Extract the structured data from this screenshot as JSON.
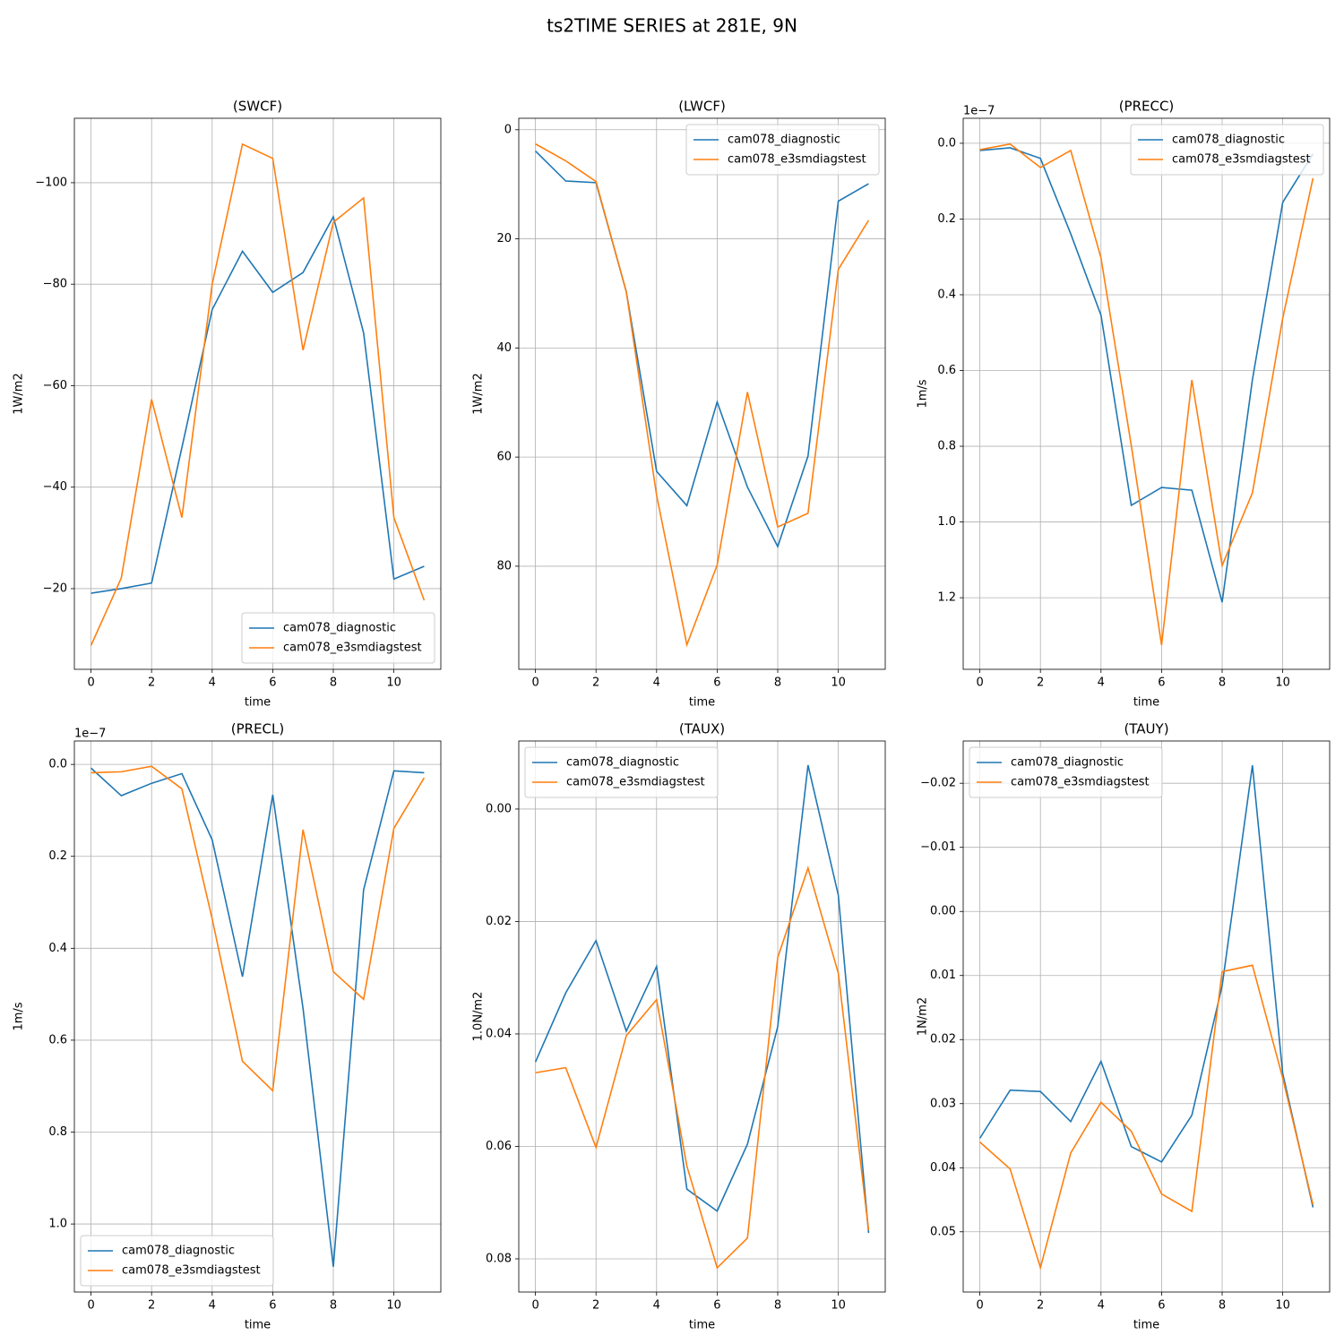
{
  "title": "ts2TIME SERIES at 281E, 9N",
  "chart_data": [
    {
      "type": "line",
      "title": "(SWCF)",
      "x_label": "time",
      "y_label": "1W/m2",
      "x": [
        0,
        1,
        2,
        3,
        4,
        5,
        6,
        7,
        8,
        9,
        10,
        11
      ],
      "xlim": [
        -0.55,
        11.55
      ],
      "xticks": [
        0,
        2,
        4,
        6,
        8,
        10
      ],
      "ylim": [
        -4.1,
        -112.7
      ],
      "yticks": [
        {
          "value": -100,
          "label": "−100"
        },
        {
          "value": -80,
          "label": "−80"
        },
        {
          "value": -60,
          "label": "−60"
        },
        {
          "value": -40,
          "label": "−40"
        },
        {
          "value": -20,
          "label": "−20"
        }
      ],
      "grid": true,
      "legend": "lower right",
      "series": [
        {
          "name": "cam078_diagnostic",
          "color": "#1f77b4",
          "values": [
            -19.1,
            -20,
            -21.1,
            -47.8,
            -75,
            -86.5,
            -78.4,
            -82.3,
            -93.3,
            -70.4,
            -21.9,
            -24.4
          ]
        },
        {
          "name": "cam078_e3smdiagstest",
          "color": "#ff7f0e",
          "values": [
            -8.8,
            -22.1,
            -57.3,
            -34,
            -80,
            -107.6,
            -104.8,
            -67,
            -92.2,
            -97,
            -34,
            -17.7
          ]
        }
      ]
    },
    {
      "type": "line",
      "title": "(LWCF)",
      "x_label": "time",
      "y_label": "1W/m2",
      "x": [
        0,
        1,
        2,
        3,
        4,
        5,
        6,
        7,
        8,
        9,
        10,
        11
      ],
      "xlim": [
        -0.55,
        11.55
      ],
      "xticks": [
        0,
        2,
        4,
        6,
        8,
        10
      ],
      "ylim": [
        98.9,
        -2.1
      ],
      "yticks": [
        0,
        20,
        40,
        60,
        80
      ],
      "grid": true,
      "legend": "upper right",
      "series": [
        {
          "name": "cam078_diagnostic",
          "color": "#1f77b4",
          "values": [
            3.9,
            9.4,
            9.7,
            29.7,
            62.6,
            68.9,
            49.9,
            65.5,
            76.4,
            59.8,
            13.1,
            9.9
          ]
        },
        {
          "name": "cam078_e3smdiagstest",
          "color": "#ff7f0e",
          "values": [
            2.6,
            5.7,
            9.5,
            29.7,
            67,
            94.4,
            79.8,
            48.1,
            72.8,
            70.3,
            25.6,
            16.6
          ]
        }
      ]
    },
    {
      "type": "line",
      "title": "(PRECC)",
      "x_label": "time",
      "y_label": "1m/s",
      "y_offset_label": "1e−7",
      "x": [
        0,
        1,
        2,
        3,
        4,
        5,
        6,
        7,
        8,
        9,
        10,
        11
      ],
      "xlim": [
        -0.55,
        11.55
      ],
      "xticks": [
        0,
        2,
        4,
        6,
        8,
        10
      ],
      "ylim": [
        1.389,
        -0.066
      ],
      "yticks": [
        {
          "value": 0,
          "label": "0.0"
        },
        0.2,
        0.4,
        0.6,
        0.8,
        {
          "value": 1,
          "label": "1.0"
        },
        1.2
      ],
      "grid": true,
      "legend": "upper right",
      "series": [
        {
          "name": "cam078_diagnostic",
          "color": "#1f77b4",
          "values": [
            0.019,
            0.012,
            0.04,
            0.239,
            0.454,
            0.956,
            0.909,
            0.916,
            1.212,
            0.624,
            0.156,
            0.028
          ]
        },
        {
          "name": "cam078_e3smdiagstest",
          "color": "#ff7f0e",
          "values": [
            0.017,
            0.002,
            0.064,
            0.019,
            0.303,
            0.798,
            1.325,
            0.625,
            1.115,
            0.923,
            0.462,
            0.092
          ]
        }
      ]
    },
    {
      "type": "line",
      "title": "(PRECL)",
      "x_label": "time",
      "y_label": "1m/s",
      "y_offset_label": "1e−7",
      "x": [
        0,
        1,
        2,
        3,
        4,
        5,
        6,
        7,
        8,
        9,
        10,
        11
      ],
      "xlim": [
        -0.55,
        11.55
      ],
      "xticks": [
        0,
        2,
        4,
        6,
        8,
        10
      ],
      "ylim": [
        1.148,
        -0.051
      ],
      "yticks": [
        {
          "value": 0,
          "label": "0.0"
        },
        0.2,
        0.4,
        0.6,
        0.8,
        {
          "value": 1,
          "label": "1.0"
        }
      ],
      "grid": true,
      "legend": "lower left",
      "series": [
        {
          "name": "cam078_diagnostic",
          "color": "#1f77b4",
          "values": [
            0.008,
            0.068,
            0.041,
            0.02,
            0.164,
            0.462,
            0.066,
            0.531,
            1.093,
            0.273,
            0.014,
            0.018
          ]
        },
        {
          "name": "cam078_e3smdiagstest",
          "color": "#ff7f0e",
          "values": [
            0.018,
            0.016,
            0.004,
            0.053,
            0.336,
            0.646,
            0.71,
            0.142,
            0.451,
            0.511,
            0.139,
            0.029
          ]
        }
      ]
    },
    {
      "type": "line",
      "title": "(TAUX)",
      "x_label": "time",
      "y_label": "1.0N/m2",
      "x": [
        0,
        1,
        2,
        3,
        4,
        5,
        6,
        7,
        8,
        9,
        10,
        11
      ],
      "xlim": [
        -0.55,
        11.55
      ],
      "xticks": [
        0,
        2,
        4,
        6,
        8,
        10
      ],
      "ylim": [
        0.0859,
        -0.0121
      ],
      "yticks": [
        {
          "value": 0,
          "label": "0.00"
        },
        0.02,
        0.04,
        0.06,
        0.08
      ],
      "grid": true,
      "legend": "upper left",
      "series": [
        {
          "name": "cam078_diagnostic",
          "color": "#1f77b4",
          "values": [
            0.045,
            0.0327,
            0.0234,
            0.0395,
            0.028,
            0.0676,
            0.0715,
            0.0596,
            0.0387,
            -0.0078,
            0.0153,
            0.0754
          ]
        },
        {
          "name": "cam078_e3smdiagstest",
          "color": "#ff7f0e",
          "values": [
            0.0469,
            0.046,
            0.0602,
            0.0403,
            0.0339,
            0.0635,
            0.0816,
            0.0763,
            0.0264,
            0.0105,
            0.0292,
            0.0749
          ]
        }
      ]
    },
    {
      "type": "line",
      "title": "(TAUY)",
      "x_label": "time",
      "y_label": "1N/m2",
      "x": [
        0,
        1,
        2,
        3,
        4,
        5,
        6,
        7,
        8,
        9,
        10,
        11
      ],
      "xlim": [
        -0.55,
        11.55
      ],
      "xticks": [
        0,
        2,
        4,
        6,
        8,
        10
      ],
      "ylim": [
        0.0594,
        -0.0266
      ],
      "yticks": [
        {
          "value": -0.02,
          "label": "−0.02"
        },
        {
          "value": -0.01,
          "label": "−0.01"
        },
        {
          "value": 0,
          "label": "0.00"
        },
        0.01,
        0.02,
        0.03,
        0.04,
        0.05
      ],
      "grid": true,
      "legend": "upper left",
      "series": [
        {
          "name": "cam078_diagnostic",
          "color": "#1f77b4",
          "values": [
            0.0354,
            0.0279,
            0.0281,
            0.0328,
            0.0234,
            0.0367,
            0.0391,
            0.0318,
            0.0116,
            -0.0228,
            0.0253,
            0.0462
          ]
        },
        {
          "name": "cam078_e3smdiagstest",
          "color": "#ff7f0e",
          "values": [
            0.036,
            0.0402,
            0.0556,
            0.0377,
            0.0298,
            0.0343,
            0.0441,
            0.0468,
            0.0094,
            0.0084,
            0.026,
            0.0458
          ]
        }
      ]
    }
  ]
}
